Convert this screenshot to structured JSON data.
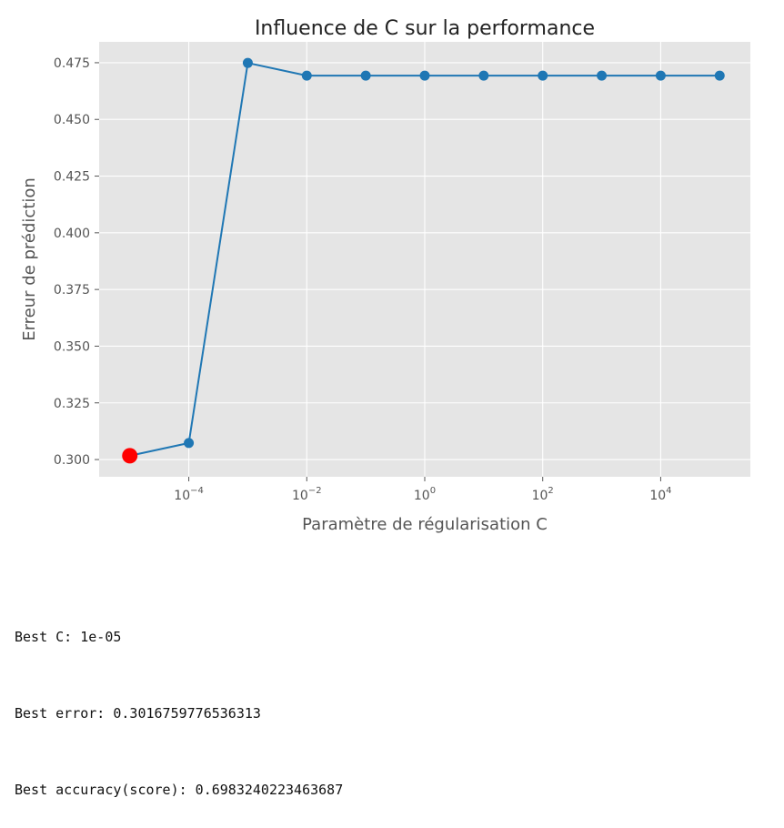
{
  "chart_data": {
    "type": "line",
    "title": "Influence de C sur la performance",
    "xlabel": "Paramètre de régularisation C",
    "ylabel": "Erreur de prédiction",
    "x_scale": "log",
    "x": [
      1e-05,
      0.0001,
      0.001,
      0.01,
      0.1,
      1,
      10,
      100,
      1000,
      10000,
      100000
    ],
    "series": [
      {
        "name": "",
        "values": [
          0.30168,
          0.3073,
          0.4749,
          0.4693,
          0.4693,
          0.4693,
          0.4693,
          0.4693,
          0.4693,
          0.4693,
          0.4693
        ],
        "color": "#1f77b4",
        "marker": "circle"
      }
    ],
    "highlight": {
      "x": 1e-05,
      "y": 0.30168,
      "color": "#ff0000"
    },
    "xlim_exponent": [
      -5.52,
      5.52
    ],
    "ylim": [
      0.2924,
      0.4842
    ],
    "xticks": [
      {
        "exp": -4,
        "base": "10",
        "power": "−4"
      },
      {
        "exp": -2,
        "base": "10",
        "power": "−2"
      },
      {
        "exp": 0,
        "base": "10",
        "power": "0"
      },
      {
        "exp": 2,
        "base": "10",
        "power": "2"
      },
      {
        "exp": 4,
        "base": "10",
        "power": "4"
      }
    ],
    "yticks": [
      0.3,
      0.325,
      0.35,
      0.375,
      0.4,
      0.425,
      0.45,
      0.475
    ],
    "ytick_labels": [
      "0.300",
      "0.325",
      "0.350",
      "0.375",
      "0.400",
      "0.425",
      "0.450",
      "0.475"
    ],
    "grid": true,
    "style": "ggplot",
    "background_color": "#e5e5e5",
    "grid_color": "#ffffff"
  },
  "output": {
    "best_c": "Best C: 1e-05",
    "best_error": "Best error: 0.3016759776536313",
    "best_accuracy": "Best accuracy(score): 0.6983240223463687"
  }
}
